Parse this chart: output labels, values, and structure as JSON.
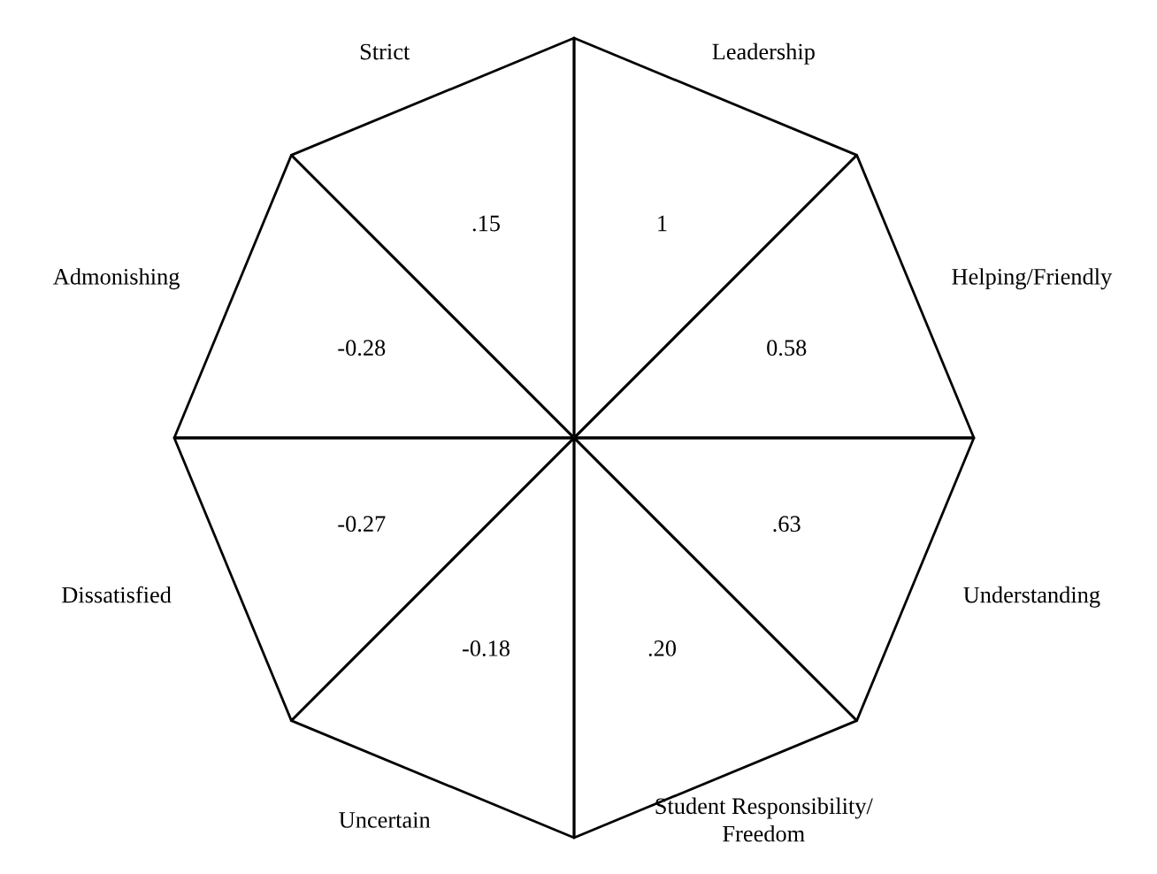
{
  "chart_data": {
    "type": "other",
    "categories": [
      "Leadership",
      "Helping/Friendly",
      "Understanding",
      "Student Responsibility/\nFreedom",
      "Uncertain",
      "Dissatisfied",
      "Admonishing",
      "Strict"
    ],
    "values": [
      1,
      0.58,
      0.63,
      0.2,
      -0.18,
      -0.27,
      -0.28,
      0.15
    ],
    "value_labels": [
      "1",
      "0.58",
      ".63",
      ".20",
      "-0.18",
      "-0.27",
      "-0.28",
      ".15"
    ]
  }
}
